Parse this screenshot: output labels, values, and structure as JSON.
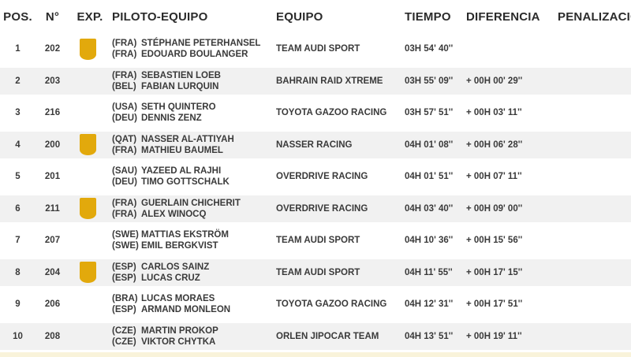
{
  "table": {
    "columns": {
      "pos": "POS.",
      "num": "N°",
      "exp": "EXP.",
      "pilot": "PILOTO-EQUIPO",
      "team": "EQUIPO",
      "time": "TIEMPO",
      "diff": "DIFERENCIA",
      "penalty": "PENALIZACIÓN"
    },
    "colors": {
      "badge": "#e2a90c",
      "alt_row_bg": "#f1f1f1",
      "footer_strip": "#f9f3da"
    },
    "rows": [
      {
        "pos": "1",
        "num": "202",
        "exp": true,
        "driver_nat": "(FRA)",
        "driver": "STÉPHANE PETERHANSEL",
        "codriver_nat": "(FRA)",
        "codriver": "EDOUARD BOULANGER",
        "team": "TEAM AUDI SPORT",
        "time": "03H 54' 40''",
        "diff": "",
        "penalty": ""
      },
      {
        "pos": "2",
        "num": "203",
        "exp": false,
        "driver_nat": "(FRA)",
        "driver": "SEBASTIEN LOEB",
        "codriver_nat": "(BEL)",
        "codriver": "FABIAN LURQUIN",
        "team": "BAHRAIN RAID XTREME",
        "time": "03H 55' 09''",
        "diff": "+ 00H 00' 29''",
        "penalty": ""
      },
      {
        "pos": "3",
        "num": "216",
        "exp": false,
        "driver_nat": "(USA)",
        "driver": "SETH QUINTERO",
        "codriver_nat": "(DEU)",
        "codriver": "DENNIS ZENZ",
        "team": "TOYOTA GAZOO RACING",
        "time": "03H 57' 51''",
        "diff": "+ 00H 03' 11''",
        "penalty": ""
      },
      {
        "pos": "4",
        "num": "200",
        "exp": true,
        "driver_nat": "(QAT)",
        "driver": "NASSER AL-ATTIYAH",
        "codriver_nat": "(FRA)",
        "codriver": "MATHIEU BAUMEL",
        "team": "NASSER RACING",
        "time": "04H 01' 08''",
        "diff": "+ 00H 06' 28''",
        "penalty": ""
      },
      {
        "pos": "5",
        "num": "201",
        "exp": false,
        "driver_nat": "(SAU)",
        "driver": "YAZEED AL RAJHI",
        "codriver_nat": "(DEU)",
        "codriver": "TIMO GOTTSCHALK",
        "team": "OVERDRIVE RACING",
        "time": "04H 01' 51''",
        "diff": "+ 00H 07' 11''",
        "penalty": ""
      },
      {
        "pos": "6",
        "num": "211",
        "exp": true,
        "driver_nat": "(FRA)",
        "driver": "GUERLAIN CHICHERIT",
        "codriver_nat": "(FRA)",
        "codriver": "ALEX WINOCQ",
        "team": "OVERDRIVE RACING",
        "time": "04H 03' 40''",
        "diff": "+ 00H 09' 00''",
        "penalty": ""
      },
      {
        "pos": "7",
        "num": "207",
        "exp": false,
        "driver_nat": "(SWE)",
        "driver": "MATTIAS EKSTRÖM",
        "codriver_nat": "(SWE)",
        "codriver": "EMIL BERGKVIST",
        "team": "TEAM AUDI SPORT",
        "time": "04H 10' 36''",
        "diff": "+ 00H 15' 56''",
        "penalty": ""
      },
      {
        "pos": "8",
        "num": "204",
        "exp": true,
        "driver_nat": "(ESP)",
        "driver": "CARLOS SAINZ",
        "codriver_nat": "(ESP)",
        "codriver": "LUCAS CRUZ",
        "team": "TEAM AUDI SPORT",
        "time": "04H 11' 55''",
        "diff": "+ 00H 17' 15''",
        "penalty": ""
      },
      {
        "pos": "9",
        "num": "206",
        "exp": false,
        "driver_nat": "(BRA)",
        "driver": "LUCAS MORAES",
        "codriver_nat": "(ESP)",
        "codriver": "ARMAND MONLEON",
        "team": "TOYOTA GAZOO RACING",
        "time": "04H 12' 31''",
        "diff": "+ 00H 17' 51''",
        "penalty": ""
      },
      {
        "pos": "10",
        "num": "208",
        "exp": false,
        "driver_nat": "(CZE)",
        "driver": "MARTIN PROKOP",
        "codriver_nat": "(CZE)",
        "codriver": "VIKTOR CHYTKA",
        "team": "ORLEN JIPOCAR TEAM",
        "time": "04H 13' 51''",
        "diff": "+ 00H 19' 11''",
        "penalty": ""
      }
    ]
  }
}
